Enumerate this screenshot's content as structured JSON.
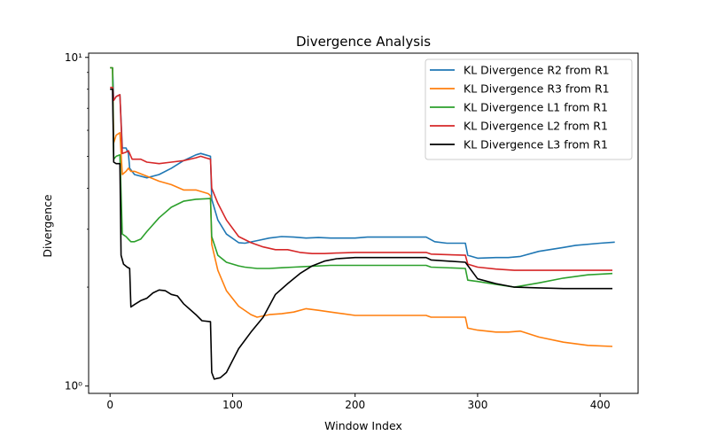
{
  "chart_data": {
    "type": "line",
    "title": "Divergence Analysis",
    "xlabel": "Window Index",
    "ylabel": "Divergence",
    "xlim": [
      -17.5,
      431
    ],
    "ylim": [
      0.95,
      10.3
    ],
    "yscale": "log",
    "x_ticks": [
      0,
      100,
      200,
      300,
      400
    ],
    "y_ticks": [
      1,
      10
    ],
    "y_tick_labels": [
      "10⁰",
      "10¹"
    ],
    "grid": false,
    "legend_position": "top-right",
    "series": [
      {
        "name": "KL Divergence R2 from R1",
        "color": "#1f77b4",
        "points": [
          [
            0,
            9.3
          ],
          [
            2,
            9.3
          ],
          [
            3,
            7.4
          ],
          [
            5,
            7.6
          ],
          [
            8,
            7.7
          ],
          [
            10,
            5.3
          ],
          [
            13,
            5.3
          ],
          [
            15,
            5.1
          ],
          [
            16,
            4.6
          ],
          [
            20,
            4.4
          ],
          [
            30,
            4.3
          ],
          [
            40,
            4.4
          ],
          [
            50,
            4.6
          ],
          [
            60,
            4.85
          ],
          [
            70,
            5.05
          ],
          [
            74,
            5.1
          ],
          [
            78,
            5.05
          ],
          [
            82,
            5.0
          ],
          [
            83,
            3.7
          ],
          [
            88,
            3.2
          ],
          [
            95,
            2.9
          ],
          [
            105,
            2.73
          ],
          [
            110,
            2.72
          ],
          [
            120,
            2.77
          ],
          [
            130,
            2.82
          ],
          [
            140,
            2.85
          ],
          [
            150,
            2.84
          ],
          [
            160,
            2.82
          ],
          [
            170,
            2.83
          ],
          [
            180,
            2.82
          ],
          [
            190,
            2.82
          ],
          [
            200,
            2.82
          ],
          [
            210,
            2.84
          ],
          [
            240,
            2.84
          ],
          [
            258,
            2.84
          ],
          [
            265,
            2.75
          ],
          [
            275,
            2.72
          ],
          [
            290,
            2.72
          ],
          [
            292,
            2.5
          ],
          [
            300,
            2.45
          ],
          [
            315,
            2.46
          ],
          [
            325,
            2.46
          ],
          [
            335,
            2.48
          ],
          [
            350,
            2.57
          ],
          [
            370,
            2.64
          ],
          [
            380,
            2.68
          ],
          [
            400,
            2.72
          ],
          [
            412,
            2.74
          ]
        ]
      },
      {
        "name": "KL Divergence R3 from R1",
        "color": "#ff7f0e",
        "points": [
          [
            0,
            9.3
          ],
          [
            2,
            9.3
          ],
          [
            3,
            5.5
          ],
          [
            5,
            5.8
          ],
          [
            8,
            5.9
          ],
          [
            10,
            4.4
          ],
          [
            13,
            4.5
          ],
          [
            15,
            4.6
          ],
          [
            17,
            4.5
          ],
          [
            20,
            4.5
          ],
          [
            30,
            4.35
          ],
          [
            40,
            4.2
          ],
          [
            50,
            4.1
          ],
          [
            60,
            3.95
          ],
          [
            70,
            3.95
          ],
          [
            80,
            3.85
          ],
          [
            82,
            3.8
          ],
          [
            83,
            2.7
          ],
          [
            88,
            2.25
          ],
          [
            95,
            1.95
          ],
          [
            105,
            1.75
          ],
          [
            115,
            1.65
          ],
          [
            120,
            1.62
          ],
          [
            130,
            1.65
          ],
          [
            140,
            1.66
          ],
          [
            150,
            1.68
          ],
          [
            160,
            1.72
          ],
          [
            170,
            1.7
          ],
          [
            180,
            1.68
          ],
          [
            190,
            1.66
          ],
          [
            200,
            1.64
          ],
          [
            210,
            1.64
          ],
          [
            258,
            1.64
          ],
          [
            262,
            1.62
          ],
          [
            290,
            1.62
          ],
          [
            292,
            1.5
          ],
          [
            300,
            1.48
          ],
          [
            315,
            1.46
          ],
          [
            325,
            1.46
          ],
          [
            335,
            1.47
          ],
          [
            350,
            1.41
          ],
          [
            370,
            1.36
          ],
          [
            390,
            1.33
          ],
          [
            410,
            1.32
          ]
        ]
      },
      {
        "name": "KL Divergence L1 from R1",
        "color": "#2ca02c",
        "points": [
          [
            0,
            9.3
          ],
          [
            2,
            9.3
          ],
          [
            3,
            4.9
          ],
          [
            5,
            5.0
          ],
          [
            8,
            5.05
          ],
          [
            10,
            2.9
          ],
          [
            13,
            2.85
          ],
          [
            15,
            2.8
          ],
          [
            17,
            2.75
          ],
          [
            20,
            2.75
          ],
          [
            25,
            2.8
          ],
          [
            30,
            2.95
          ],
          [
            40,
            3.25
          ],
          [
            50,
            3.5
          ],
          [
            60,
            3.65
          ],
          [
            70,
            3.7
          ],
          [
            82,
            3.72
          ],
          [
            83,
            2.85
          ],
          [
            88,
            2.5
          ],
          [
            95,
            2.38
          ],
          [
            105,
            2.32
          ],
          [
            110,
            2.3
          ],
          [
            120,
            2.28
          ],
          [
            130,
            2.28
          ],
          [
            140,
            2.29
          ],
          [
            150,
            2.3
          ],
          [
            160,
            2.31
          ],
          [
            180,
            2.33
          ],
          [
            200,
            2.33
          ],
          [
            258,
            2.33
          ],
          [
            262,
            2.3
          ],
          [
            290,
            2.28
          ],
          [
            292,
            2.1
          ],
          [
            300,
            2.08
          ],
          [
            315,
            2.04
          ],
          [
            330,
            2.0
          ],
          [
            350,
            2.06
          ],
          [
            370,
            2.13
          ],
          [
            390,
            2.18
          ],
          [
            410,
            2.2
          ]
        ]
      },
      {
        "name": "KL Divergence L2 from R1",
        "color": "#d62728",
        "points": [
          [
            0,
            8.1
          ],
          [
            2,
            8.1
          ],
          [
            3,
            7.4
          ],
          [
            5,
            7.6
          ],
          [
            8,
            7.7
          ],
          [
            10,
            5.1
          ],
          [
            13,
            5.15
          ],
          [
            15,
            5.2
          ],
          [
            18,
            4.9
          ],
          [
            25,
            4.9
          ],
          [
            30,
            4.8
          ],
          [
            40,
            4.75
          ],
          [
            50,
            4.8
          ],
          [
            60,
            4.85
          ],
          [
            70,
            4.95
          ],
          [
            74,
            5.0
          ],
          [
            78,
            4.95
          ],
          [
            82,
            4.9
          ],
          [
            83,
            4.0
          ],
          [
            88,
            3.6
          ],
          [
            95,
            3.2
          ],
          [
            105,
            2.85
          ],
          [
            115,
            2.73
          ],
          [
            125,
            2.65
          ],
          [
            135,
            2.6
          ],
          [
            145,
            2.6
          ],
          [
            155,
            2.55
          ],
          [
            165,
            2.53
          ],
          [
            175,
            2.53
          ],
          [
            185,
            2.54
          ],
          [
            200,
            2.55
          ],
          [
            258,
            2.55
          ],
          [
            262,
            2.52
          ],
          [
            290,
            2.5
          ],
          [
            292,
            2.35
          ],
          [
            300,
            2.3
          ],
          [
            315,
            2.27
          ],
          [
            330,
            2.25
          ],
          [
            350,
            2.25
          ],
          [
            370,
            2.25
          ],
          [
            390,
            2.25
          ],
          [
            410,
            2.25
          ]
        ]
      },
      {
        "name": "KL Divergence L3 from R1",
        "color": "#000000",
        "points": [
          [
            0,
            8.0
          ],
          [
            2,
            8.0
          ],
          [
            3,
            4.8
          ],
          [
            5,
            4.75
          ],
          [
            8,
            4.75
          ],
          [
            9,
            2.5
          ],
          [
            11,
            2.35
          ],
          [
            14,
            2.3
          ],
          [
            16,
            2.28
          ],
          [
            17,
            1.74
          ],
          [
            20,
            1.77
          ],
          [
            25,
            1.82
          ],
          [
            30,
            1.85
          ],
          [
            35,
            1.92
          ],
          [
            40,
            1.96
          ],
          [
            45,
            1.95
          ],
          [
            50,
            1.9
          ],
          [
            55,
            1.88
          ],
          [
            60,
            1.78
          ],
          [
            70,
            1.65
          ],
          [
            75,
            1.58
          ],
          [
            82,
            1.57
          ],
          [
            83,
            1.1
          ],
          [
            85,
            1.05
          ],
          [
            90,
            1.06
          ],
          [
            95,
            1.1
          ],
          [
            105,
            1.3
          ],
          [
            115,
            1.46
          ],
          [
            125,
            1.62
          ],
          [
            135,
            1.9
          ],
          [
            145,
            2.05
          ],
          [
            155,
            2.2
          ],
          [
            165,
            2.32
          ],
          [
            175,
            2.4
          ],
          [
            185,
            2.44
          ],
          [
            200,
            2.46
          ],
          [
            258,
            2.46
          ],
          [
            262,
            2.42
          ],
          [
            290,
            2.38
          ],
          [
            300,
            2.12
          ],
          [
            315,
            2.05
          ],
          [
            330,
            2.0
          ],
          [
            350,
            1.99
          ],
          [
            370,
            1.98
          ],
          [
            390,
            1.98
          ],
          [
            410,
            1.98
          ]
        ]
      }
    ]
  }
}
